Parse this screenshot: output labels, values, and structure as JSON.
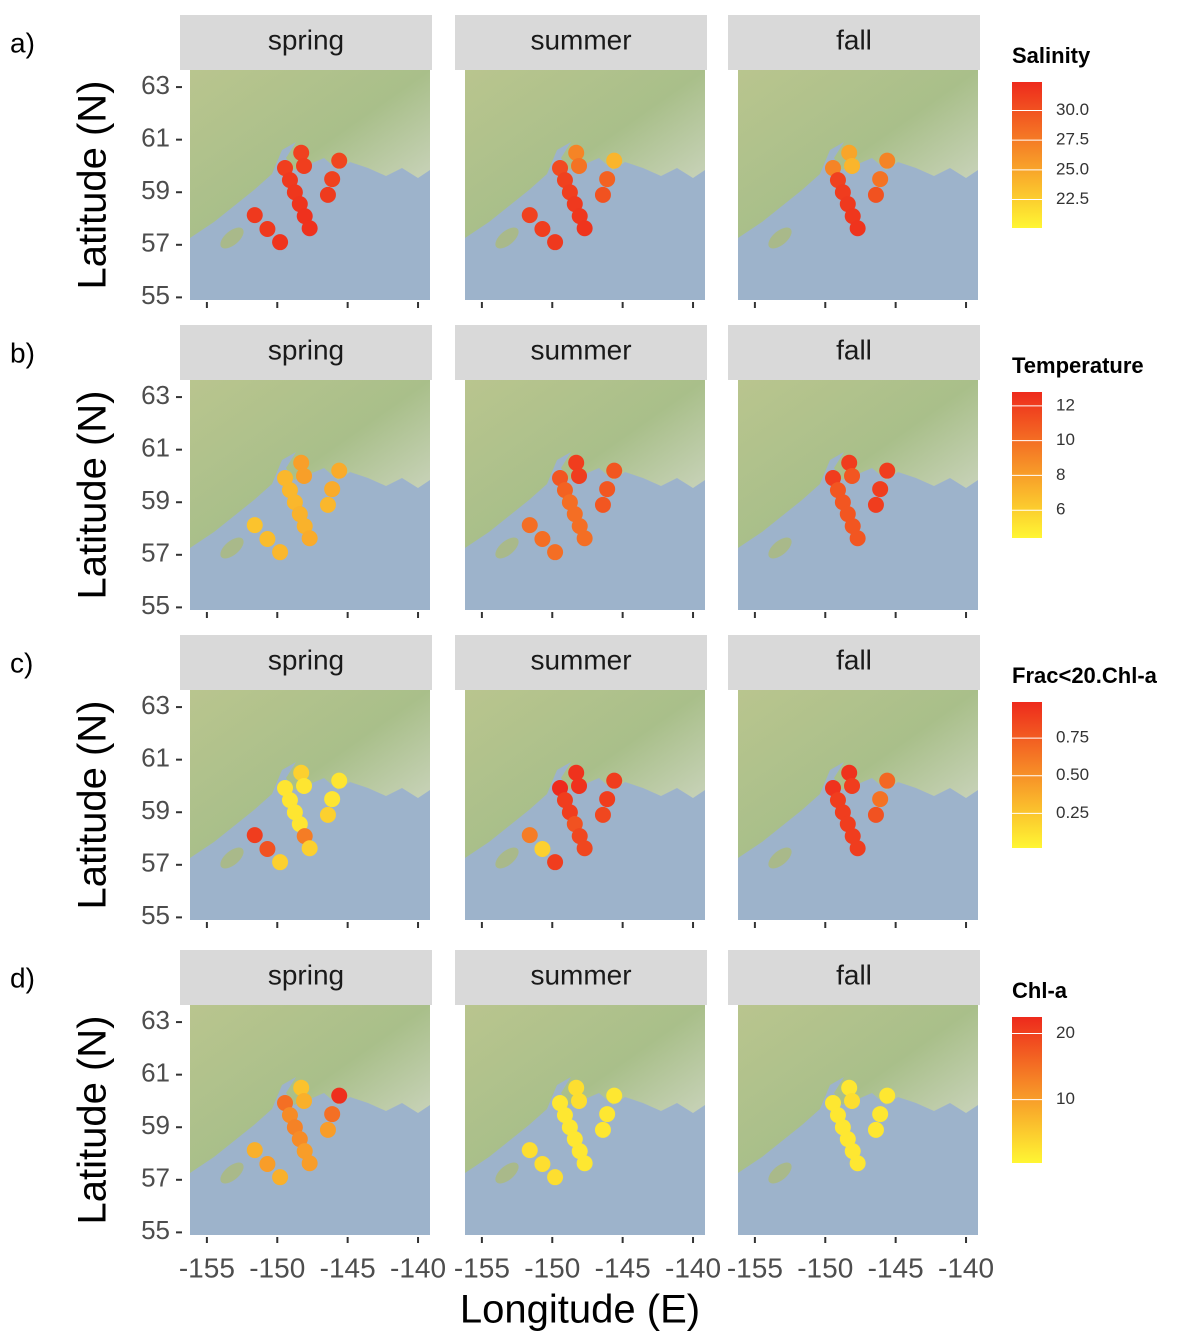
{
  "xlabel": "Longitude (E)",
  "chart_data": [
    {
      "type": "scatter",
      "panel_label": "a)",
      "ylabel": "Latitude (N)",
      "legend_title": "Salinity",
      "colors": [
        "#fff633",
        "#ee2a1c"
      ],
      "clim": [
        20.1,
        32.4
      ],
      "cticks": [
        {
          "value": 30,
          "label": "30.0"
        },
        27.5,
        {
          "value": 25,
          "label": "25.0"
        },
        22.5
      ],
      "xlim": [
        -156.2,
        -139.15
      ],
      "ylim": [
        54.9,
        63.65
      ],
      "xticks": [
        -155,
        -150,
        -145,
        -140
      ],
      "yticks": [
        55,
        57,
        59,
        61,
        63
      ],
      "facets": [
        {
          "name": "spring",
          "x": [
            -151.6,
            -150.7,
            -149.8,
            -149.45,
            -149.1,
            -148.75,
            -148.4,
            -148.05,
            -147.7,
            -148.3,
            -148.1,
            -145.6,
            -146.1,
            -146.4
          ],
          "y": [
            58.13,
            57.6,
            57.1,
            59.92,
            59.46,
            59.0,
            58.55,
            58.09,
            57.63,
            60.5,
            60.0,
            60.2,
            59.5,
            58.9
          ],
          "values": [
            31.5,
            31.5,
            31.8,
            31.2,
            31.5,
            31.6,
            31.8,
            32.0,
            32.0,
            31.0,
            31.2,
            30.8,
            31.0,
            31.4
          ]
        },
        {
          "name": "summer",
          "x": [
            -151.6,
            -150.7,
            -149.8,
            -149.45,
            -149.1,
            -148.75,
            -148.4,
            -148.05,
            -147.7,
            -148.3,
            -148.1,
            -145.6,
            -146.1,
            -146.4
          ],
          "y": [
            58.13,
            57.6,
            57.1,
            59.92,
            59.46,
            59.0,
            58.55,
            58.09,
            57.63,
            60.5,
            60.0,
            60.2,
            59.5,
            58.9
          ],
          "values": [
            31.0,
            31.2,
            31.5,
            30.5,
            31.0,
            31.2,
            31.5,
            31.6,
            31.8,
            27.0,
            28.0,
            24.0,
            29.0,
            30.0
          ]
        },
        {
          "name": "fall",
          "x": [
            -149.45,
            -149.1,
            -148.75,
            -148.4,
            -148.05,
            -147.7,
            -148.3,
            -148.1,
            -145.6,
            -146.1,
            -146.4
          ],
          "y": [
            59.92,
            59.46,
            59.0,
            58.55,
            58.09,
            57.63,
            60.5,
            60.0,
            60.2,
            59.5,
            58.9
          ],
          "values": [
            27.0,
            31.0,
            31.3,
            31.5,
            31.6,
            31.8,
            25.0,
            24.0,
            27.0,
            28.0,
            30.0
          ]
        }
      ]
    },
    {
      "type": "scatter",
      "panel_label": "b)",
      "ylabel": "Latitude (N)",
      "legend_title": "Temperature",
      "colors": [
        "#fff633",
        "#ee2a1c"
      ],
      "clim": [
        4.4,
        12.8
      ],
      "cticks": [
        12,
        10,
        8,
        6
      ],
      "xlim": [
        -156.2,
        -139.15
      ],
      "ylim": [
        54.9,
        63.65
      ],
      "xticks": [
        -155,
        -150,
        -145,
        -140
      ],
      "yticks": [
        55,
        57,
        59,
        61,
        63
      ],
      "facets": [
        {
          "name": "spring",
          "x": [
            -151.6,
            -150.7,
            -149.8,
            -149.45,
            -149.1,
            -148.75,
            -148.4,
            -148.05,
            -147.7,
            -148.3,
            -148.1,
            -145.6,
            -146.1,
            -146.4
          ],
          "y": [
            58.13,
            57.6,
            57.1,
            59.92,
            59.46,
            59.0,
            58.55,
            58.09,
            57.63,
            60.5,
            60.0,
            60.2,
            59.5,
            58.9
          ],
          "values": [
            6.5,
            6.8,
            7.0,
            7.0,
            7.0,
            7.0,
            7.2,
            7.2,
            7.5,
            8.0,
            8.0,
            7.5,
            7.5,
            7.0
          ]
        },
        {
          "name": "summer",
          "x": [
            -151.6,
            -150.7,
            -149.8,
            -149.45,
            -149.1,
            -148.75,
            -148.4,
            -148.05,
            -147.7,
            -148.3,
            -148.1,
            -145.6,
            -146.1,
            -146.4
          ],
          "y": [
            58.13,
            57.6,
            57.1,
            59.92,
            59.46,
            59.0,
            58.55,
            58.09,
            57.63,
            60.5,
            60.0,
            60.2,
            59.5,
            58.9
          ],
          "values": [
            10.0,
            10.0,
            10.0,
            11.0,
            10.5,
            10.0,
            10.0,
            10.0,
            10.0,
            12.0,
            12.0,
            11.0,
            11.0,
            11.0
          ]
        },
        {
          "name": "fall",
          "x": [
            -149.45,
            -149.1,
            -148.75,
            -148.4,
            -148.05,
            -147.7,
            -148.3,
            -148.1,
            -145.6,
            -146.1,
            -146.4
          ],
          "y": [
            59.92,
            59.46,
            59.0,
            58.55,
            58.09,
            57.63,
            60.5,
            60.0,
            60.2,
            59.5,
            58.9
          ],
          "values": [
            12.0,
            11.0,
            11.0,
            11.0,
            11.0,
            11.0,
            12.0,
            11.0,
            12.0,
            12.0,
            12.0
          ]
        }
      ]
    },
    {
      "type": "scatter",
      "panel_label": "c)",
      "ylabel": "Latitude (N)",
      "legend_title": "Frac<20.Chl-a",
      "colors": [
        "#fff633",
        "#ee2a1c"
      ],
      "clim": [
        0.02,
        0.99
      ],
      "cticks": [
        0.75,
        {
          "value": 0.5,
          "label": "0.50"
        },
        0.25
      ],
      "xlim": [
        -156.2,
        -139.15
      ],
      "ylim": [
        54.9,
        63.65
      ],
      "xticks": [
        -155,
        -150,
        -145,
        -140
      ],
      "yticks": [
        55,
        57,
        59,
        61,
        63
      ],
      "facets": [
        {
          "name": "spring",
          "x": [
            -151.6,
            -150.7,
            -149.8,
            -149.45,
            -149.1,
            -148.75,
            -148.4,
            -148.05,
            -147.7,
            -148.3,
            -148.1,
            -145.6,
            -146.1,
            -146.4
          ],
          "y": [
            58.13,
            57.6,
            57.1,
            59.92,
            59.46,
            59.0,
            58.55,
            58.09,
            57.63,
            60.5,
            60.0,
            60.2,
            59.5,
            58.9
          ],
          "values": [
            0.9,
            0.8,
            0.2,
            0.1,
            0.1,
            0.1,
            0.1,
            0.6,
            0.2,
            0.2,
            0.1,
            0.1,
            0.1,
            0.2
          ]
        },
        {
          "name": "summer",
          "x": [
            -151.6,
            -150.7,
            -149.8,
            -149.45,
            -149.1,
            -148.75,
            -148.4,
            -148.05,
            -147.7,
            -148.3,
            -148.1,
            -145.6,
            -146.1,
            -146.4
          ],
          "y": [
            58.13,
            57.6,
            57.1,
            59.92,
            59.46,
            59.0,
            58.55,
            58.09,
            57.63,
            60.5,
            60.0,
            60.2,
            59.5,
            58.9
          ],
          "values": [
            0.6,
            0.2,
            0.9,
            0.99,
            0.9,
            0.9,
            0.8,
            0.85,
            0.85,
            0.95,
            0.95,
            0.9,
            0.9,
            0.85
          ]
        },
        {
          "name": "fall",
          "x": [
            -149.45,
            -149.1,
            -148.75,
            -148.4,
            -148.05,
            -147.7,
            -148.3,
            -148.1,
            -145.6,
            -146.1,
            -146.4
          ],
          "y": [
            59.92,
            59.46,
            59.0,
            58.55,
            58.09,
            57.63,
            60.5,
            60.0,
            60.2,
            59.5,
            58.9
          ],
          "values": [
            0.95,
            0.9,
            0.9,
            0.9,
            0.9,
            0.9,
            0.95,
            0.9,
            0.7,
            0.65,
            0.8
          ]
        }
      ]
    },
    {
      "type": "scatter",
      "panel_label": "d)",
      "ylabel": "Latitude (N)",
      "legend_title": "Chl-a",
      "colors": [
        "#fff633",
        "#ee2a1c"
      ],
      "clim": [
        0.4,
        22.5
      ],
      "cticks": [
        20,
        10
      ],
      "xlim": [
        -156.2,
        -139.15
      ],
      "ylim": [
        54.9,
        63.65
      ],
      "xticks": [
        -155,
        -150,
        -145,
        -140
      ],
      "yticks": [
        55,
        57,
        59,
        61,
        63
      ],
      "facets": [
        {
          "name": "spring",
          "x": [
            -151.6,
            -150.7,
            -149.8,
            -149.45,
            -149.1,
            -148.75,
            -148.4,
            -148.05,
            -147.7,
            -148.3,
            -148.1,
            -145.6,
            -146.1,
            -146.4
          ],
          "y": [
            58.13,
            57.6,
            57.1,
            59.92,
            59.46,
            59.0,
            58.55,
            58.09,
            57.63,
            60.5,
            60.0,
            60.2,
            59.5,
            58.9
          ],
          "values": [
            8,
            10,
            8,
            15,
            12,
            13,
            12,
            10,
            10,
            6,
            8,
            22,
            15,
            10
          ]
        },
        {
          "name": "summer",
          "x": [
            -151.6,
            -150.7,
            -149.8,
            -149.45,
            -149.1,
            -148.75,
            -148.4,
            -148.05,
            -147.7,
            -148.3,
            -148.1,
            -145.6,
            -146.1,
            -146.4
          ],
          "y": [
            58.13,
            57.6,
            57.1,
            59.92,
            59.46,
            59.0,
            58.55,
            58.09,
            57.63,
            60.5,
            60.0,
            60.2,
            59.5,
            58.9
          ],
          "values": [
            3,
            3,
            3,
            2,
            2,
            2,
            2,
            2,
            2,
            3,
            3,
            2,
            2,
            2
          ]
        },
        {
          "name": "fall",
          "x": [
            -149.45,
            -149.1,
            -148.75,
            -148.4,
            -148.05,
            -147.7,
            -148.3,
            -148.1,
            -145.6,
            -146.1,
            -146.4
          ],
          "y": [
            59.92,
            59.46,
            59.0,
            58.55,
            58.09,
            57.63,
            60.5,
            60.0,
            60.2,
            59.5,
            58.9
          ],
          "values": [
            2,
            2,
            2,
            2,
            2,
            2,
            2,
            3,
            2,
            2,
            2
          ]
        }
      ]
    }
  ]
}
